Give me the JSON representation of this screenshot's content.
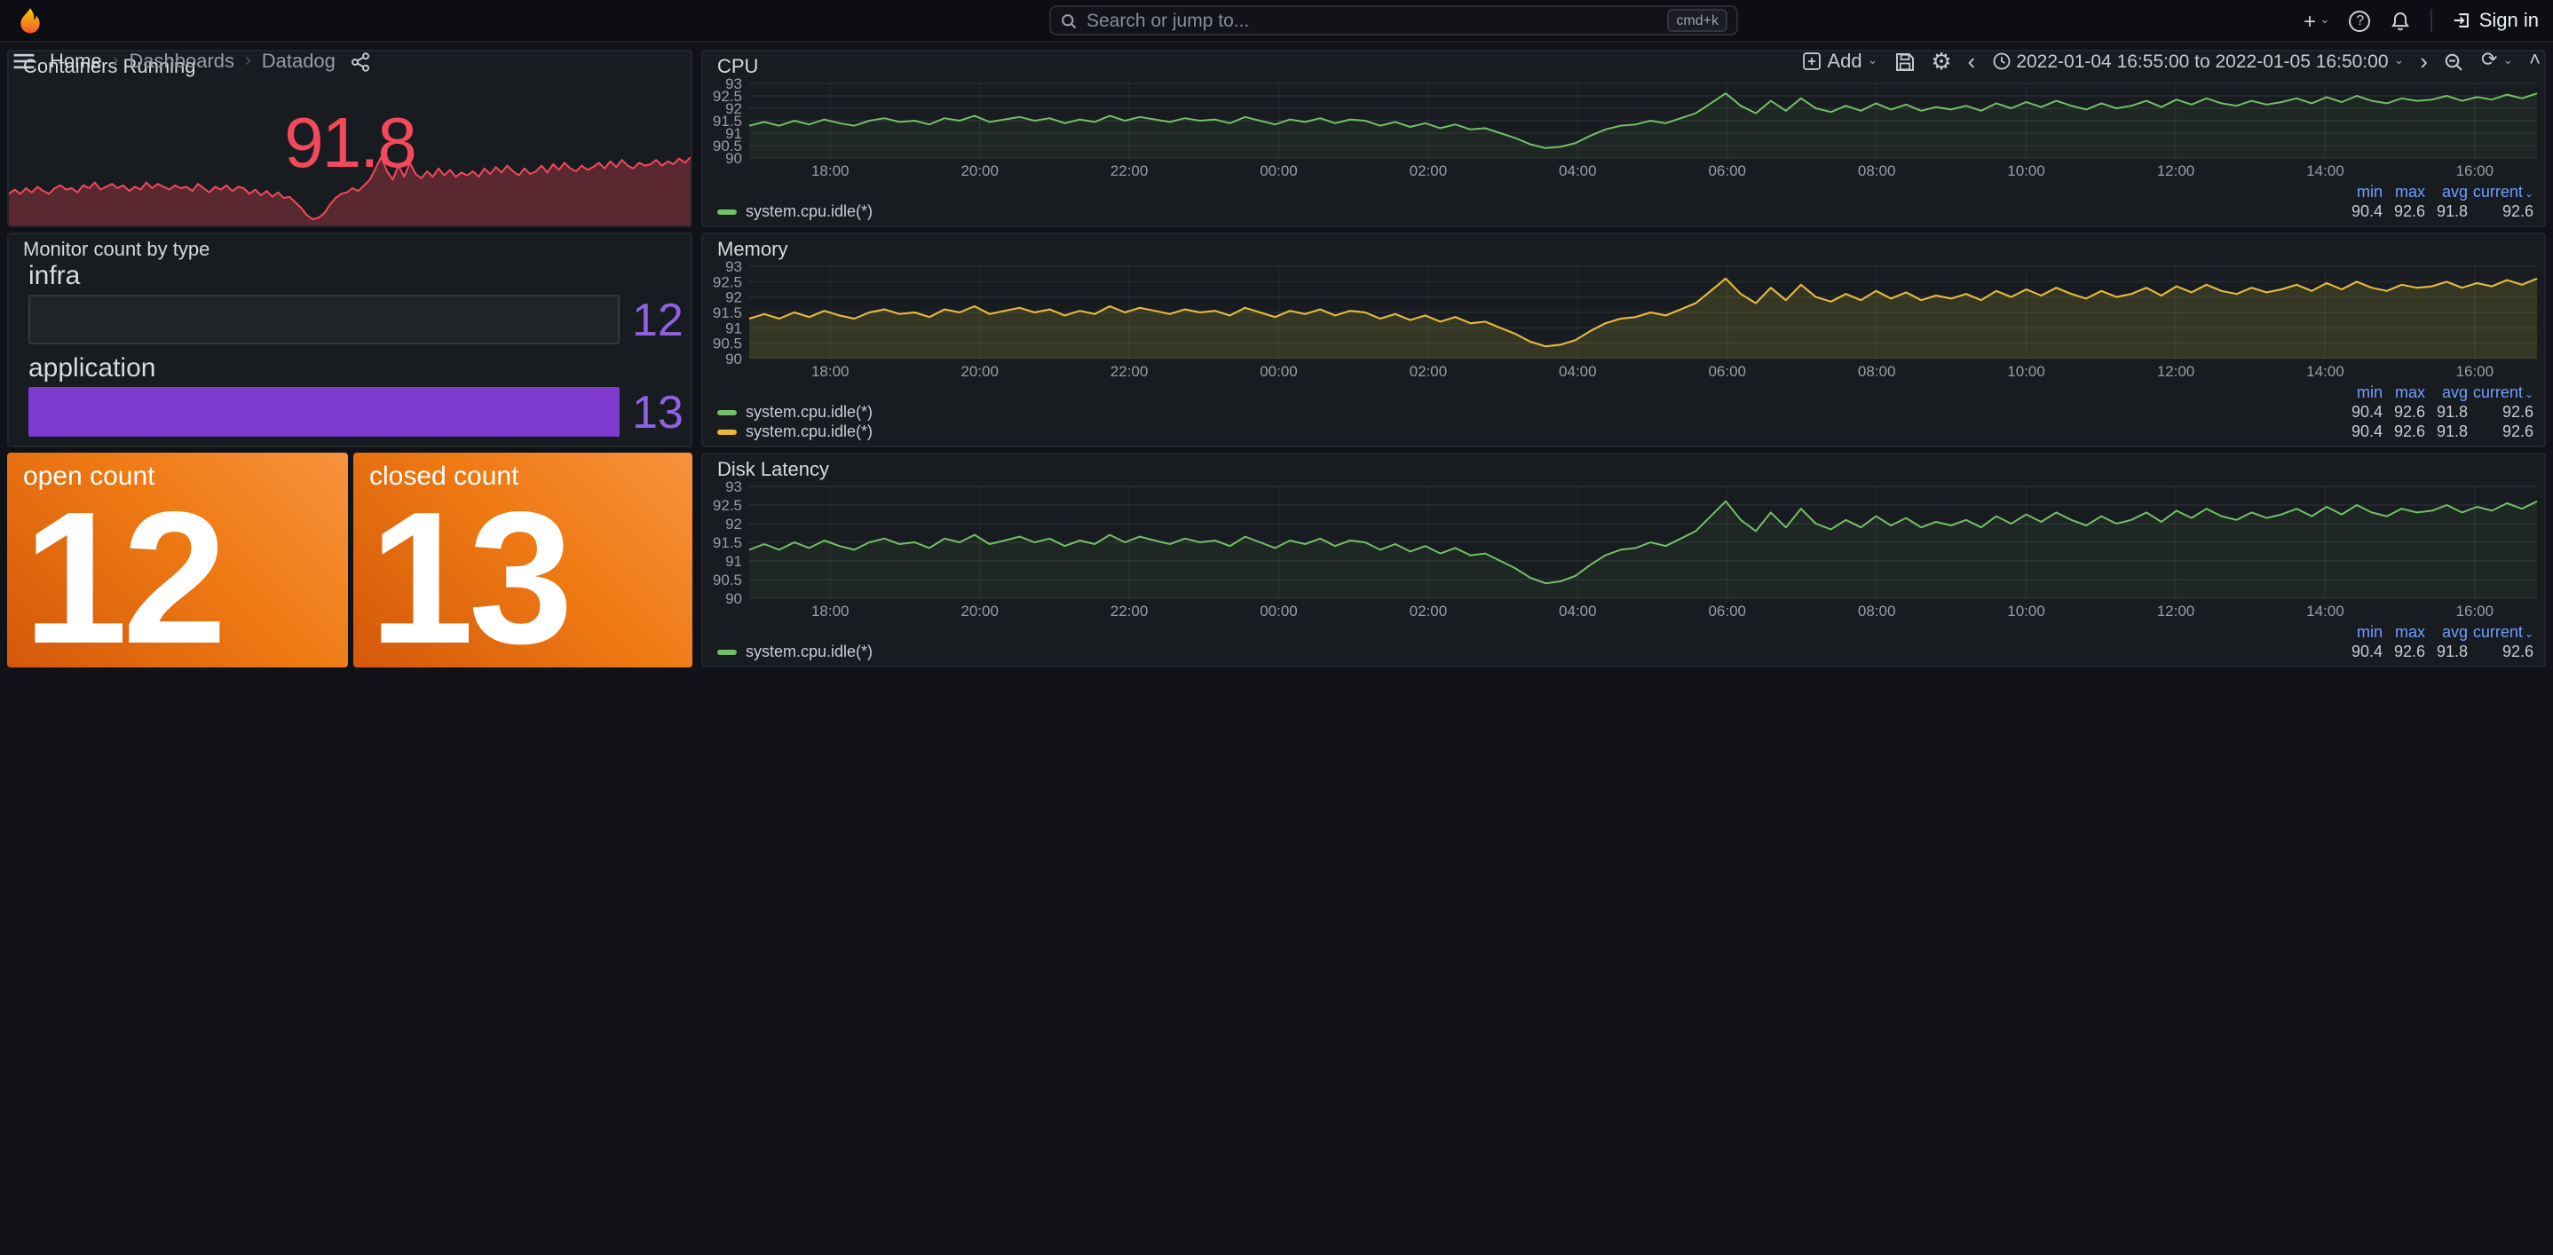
{
  "topbar": {
    "search_placeholder": "Search or jump to...",
    "shortcut_badge": "cmd+k",
    "sign_in_label": "Sign in"
  },
  "nav": {
    "breadcrumb": {
      "home": "Home",
      "dashboards": "Dashboards",
      "current": "Datadog"
    },
    "add_label": "Add",
    "time_range": "2022-01-04 16:55:00 to 2022-01-05 16:50:00"
  },
  "glyphs": {
    "plus": "+",
    "question": "?",
    "chevron_right": "›",
    "chevron_left": "‹",
    "caret_down": "⌄",
    "caret_up": "˄",
    "refresh": "⟳",
    "gear": "⚙"
  },
  "panels": {
    "containers": {
      "title": "Containers Running",
      "value": "91.8"
    },
    "monitor": {
      "title": "Monitor count by type",
      "rows": [
        {
          "label": "infra",
          "value": "12"
        },
        {
          "label": "application",
          "value": "13"
        }
      ]
    },
    "open_count": {
      "title": "open count",
      "value": "12"
    },
    "closed_count": {
      "title": "closed count",
      "value": "13"
    },
    "cpu": {
      "title": "CPU"
    },
    "memory": {
      "title": "Memory"
    },
    "disk": {
      "title": "Disk Latency"
    }
  },
  "legend": {
    "headers": [
      "min",
      "max",
      "avg",
      "current"
    ],
    "series_name": "system.cpu.idle(*)",
    "values": [
      "90.4",
      "92.6",
      "91.8",
      "92.6"
    ]
  },
  "colors": {
    "page_bg": "#111217",
    "panel_bg": "#181b1f",
    "red": "#F2495C",
    "green": "#73BF69",
    "yellow": "#EAB839",
    "purple_bar": "#7E3ACE",
    "purple_value": "#8F62E3",
    "orange_dark": "#D4580A",
    "orange_light": "#F8923E",
    "legend_blue": "#6E9FFF",
    "logo_orange": "#F05A28"
  },
  "time_axis": {
    "start_offset_min": 65,
    "step_min": 120,
    "total_min": 1435
  },
  "shared_series": {
    "points": [
      91.3,
      91.45,
      91.3,
      91.5,
      91.35,
      91.55,
      91.4,
      91.3,
      91.5,
      91.6,
      91.45,
      91.5,
      91.35,
      91.6,
      91.5,
      91.7,
      91.45,
      91.55,
      91.65,
      91.5,
      91.6,
      91.4,
      91.55,
      91.45,
      91.7,
      91.5,
      91.65,
      91.55,
      91.45,
      91.6,
      91.5,
      91.55,
      91.4,
      91.65,
      91.5,
      91.35,
      91.55,
      91.45,
      91.6,
      91.4,
      91.55,
      91.5,
      91.3,
      91.45,
      91.25,
      91.4,
      91.2,
      91.35,
      91.15,
      91.2,
      91.0,
      90.8,
      90.55,
      90.4,
      90.45,
      90.6,
      90.9,
      91.15,
      91.3,
      91.35,
      91.5,
      91.4,
      91.6,
      91.8,
      92.2,
      92.6,
      92.1,
      91.8,
      92.3,
      91.9,
      92.4,
      92.0,
      91.85,
      92.1,
      91.9,
      92.2,
      91.95,
      92.15,
      91.9,
      92.05,
      91.95,
      92.1,
      91.9,
      92.2,
      92.0,
      92.25,
      92.05,
      92.3,
      92.1,
      91.95,
      92.2,
      92.0,
      92.1,
      92.3,
      92.05,
      92.35,
      92.15,
      92.4,
      92.2,
      92.1,
      92.3,
      92.15,
      92.25,
      92.4,
      92.2,
      92.45,
      92.25,
      92.5,
      92.3,
      92.2,
      92.4,
      92.3,
      92.35,
      92.5,
      92.3,
      92.45,
      92.35,
      92.55,
      92.4,
      92.6
    ]
  },
  "chart_data": [
    {
      "id": "containers_spark",
      "panel": "Containers Running",
      "type": "area",
      "axes": false,
      "stat_value": 91.8,
      "values_ref": "shared_series",
      "series": [
        {
          "name": "containers",
          "color": "#F2495C",
          "fill_opacity": 0.3
        }
      ]
    },
    {
      "id": "cpu",
      "panel": "CPU",
      "type": "line",
      "axes": true,
      "ylim": [
        90,
        93
      ],
      "yticks": [
        "90",
        "90.5",
        "91",
        "91.5",
        "92",
        "92.5",
        "93"
      ],
      "xticks": [
        "18:00",
        "20:00",
        "22:00",
        "00:00",
        "02:00",
        "04:00",
        "06:00",
        "08:00",
        "10:00",
        "12:00",
        "14:00",
        "16:00"
      ],
      "values_ref": "shared_series",
      "series": [
        {
          "name": "system.cpu.idle(*)",
          "color": "#73BF69",
          "fill_opacity": 0.08,
          "min": 90.4,
          "max": 92.6,
          "avg": 91.8,
          "current": 92.6
        }
      ]
    },
    {
      "id": "memory",
      "panel": "Memory",
      "type": "line",
      "axes": true,
      "ylim": [
        90,
        93
      ],
      "yticks": [
        "90",
        "90.5",
        "91",
        "91.5",
        "92",
        "92.5",
        "93"
      ],
      "xticks": [
        "18:00",
        "20:00",
        "22:00",
        "00:00",
        "02:00",
        "04:00",
        "06:00",
        "08:00",
        "10:00",
        "12:00",
        "14:00",
        "16:00"
      ],
      "values_ref": "shared_series",
      "series": [
        {
          "name": "system.cpu.idle(*)",
          "color": "#73BF69",
          "fill_opacity": 0.05,
          "min": 90.4,
          "max": 92.6,
          "avg": 91.8,
          "current": 92.6
        },
        {
          "name": "system.cpu.idle(*)",
          "color": "#EAB839",
          "fill_opacity": 0.13,
          "min": 90.4,
          "max": 92.6,
          "avg": 91.8,
          "current": 92.6
        }
      ]
    },
    {
      "id": "disk",
      "panel": "Disk Latency",
      "type": "line",
      "axes": true,
      "ylim": [
        90,
        93
      ],
      "yticks": [
        "90",
        "90.5",
        "91",
        "91.5",
        "92",
        "92.5",
        "93"
      ],
      "xticks": [
        "18:00",
        "20:00",
        "22:00",
        "00:00",
        "02:00",
        "04:00",
        "06:00",
        "08:00",
        "10:00",
        "12:00",
        "14:00",
        "16:00"
      ],
      "values_ref": "shared_series",
      "series": [
        {
          "name": "system.cpu.idle(*)",
          "color": "#73BF69",
          "fill_opacity": 0.08,
          "min": 90.4,
          "max": 92.6,
          "avg": 91.8,
          "current": 92.6
        }
      ]
    }
  ]
}
